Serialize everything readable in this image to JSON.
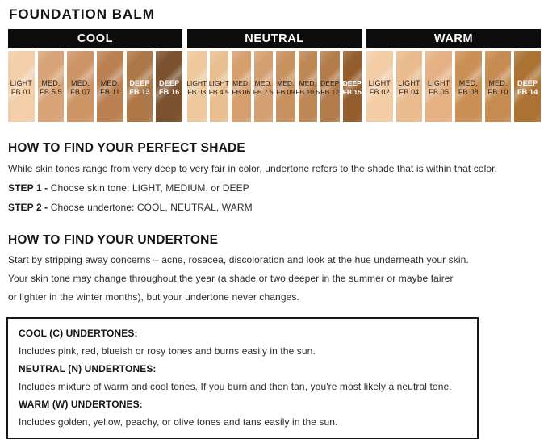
{
  "title": "FOUNDATION BALM",
  "palette": {
    "sections": [
      {
        "label": "COOL",
        "bar_color": "#0c0c0c",
        "swatches": [
          {
            "tone": "LIGHT",
            "code": "FB 01",
            "color": "#f2cea9",
            "deep": false
          },
          {
            "tone": "MED.",
            "code": "FB 5.5",
            "color": "#d8a376",
            "deep": false
          },
          {
            "tone": "MED.",
            "code": "FB 07",
            "color": "#cd9566",
            "deep": false
          },
          {
            "tone": "MED.",
            "code": "FB 11",
            "color": "#bc8152",
            "deep": false
          },
          {
            "tone": "DEEP",
            "code": "FB 13",
            "color": "#ad7747",
            "deep": true
          },
          {
            "tone": "DEEP",
            "code": "FB 16",
            "color": "#7b512e",
            "deep": true
          }
        ]
      },
      {
        "label": "NEUTRAL",
        "bar_color": "#0c0c0c",
        "swatches": [
          {
            "tone": "LIGHT",
            "code": "FB 03",
            "color": "#eec89c",
            "deep": false
          },
          {
            "tone": "LIGHT",
            "code": "FB 4.5",
            "color": "#e9bf92",
            "deep": false
          },
          {
            "tone": "MED.",
            "code": "FB 06",
            "color": "#d79f6e",
            "deep": false
          },
          {
            "tone": "MED.",
            "code": "FB 7.5",
            "color": "#d4a071",
            "deep": false
          },
          {
            "tone": "MED.",
            "code": "FB 09",
            "color": "#c79160",
            "deep": false
          },
          {
            "tone": "MED.",
            "code": "FB 10.5",
            "color": "#bd8756",
            "deep": false
          },
          {
            "tone": "DEEP",
            "code": "FB 12",
            "color": "#b47c4a",
            "deep": false
          },
          {
            "tone": "DEEP",
            "code": "FB 15",
            "color": "#935d2d",
            "deep": true
          }
        ]
      },
      {
        "label": "WARM",
        "bar_color": "#0c0c0c",
        "swatches": [
          {
            "tone": "LIGHT",
            "code": "FB 02",
            "color": "#f2cda5",
            "deep": false
          },
          {
            "tone": "LIGHT",
            "code": "FB 04",
            "color": "#e9bb8e",
            "deep": false
          },
          {
            "tone": "LIGHT",
            "code": "FB 05",
            "color": "#e5b184",
            "deep": false
          },
          {
            "tone": "MED.",
            "code": "FB 08",
            "color": "#cb9055",
            "deep": false
          },
          {
            "tone": "MED.",
            "code": "FB 10",
            "color": "#c68b50",
            "deep": false
          },
          {
            "tone": "DEEP",
            "code": "FB 14",
            "color": "#ab7233",
            "deep": true
          }
        ]
      }
    ]
  },
  "shade_guide": {
    "heading": "HOW TO FIND YOUR PERFECT SHADE",
    "intro": "While skin tones range from very deep to very fair in color, undertone refers to the shade that is within that color.",
    "steps": [
      {
        "label": "STEP 1 -",
        "text": "Choose skin tone: LIGHT, MEDIUM, or DEEP"
      },
      {
        "label": "STEP 2 -",
        "text": "Choose undertone: COOL, NEUTRAL, WARM"
      }
    ]
  },
  "undertone_guide": {
    "heading": "HOW TO FIND YOUR UNDERTONE",
    "lines": [
      "Start by stripping away concerns – acne, rosacea, discoloration and look at the hue underneath your skin.",
      "Your skin tone may change throughout the year (a shade or two deeper in the summer or maybe fairer",
      "or lighter in the winter months), but your undertone never changes."
    ]
  },
  "undertone_box": {
    "items": [
      {
        "label": "COOL (C) UNDERTONES:",
        "text": "Includes pink, red, blueish or rosy tones and burns easily in the sun."
      },
      {
        "label": "NEUTRAL (N) UNDERTONES:",
        "text": "Includes mixture of warm and cool tones. If you burn and then tan, you're most likely a neutral tone."
      },
      {
        "label": "WARM (W) UNDERTONES:",
        "text": "Includes golden, yellow, peachy, or olive tones and tans easily in the sun."
      }
    ]
  }
}
